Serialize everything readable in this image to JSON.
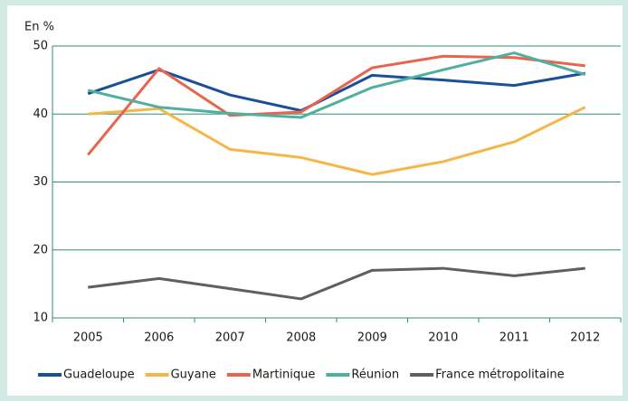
{
  "chart_data": {
    "type": "line",
    "y_label": "En %",
    "categories": [
      "2005",
      "2006",
      "2007",
      "2008",
      "2009",
      "2010",
      "2011",
      "2012"
    ],
    "series": [
      {
        "name": "Guadeloupe",
        "color": "#1b4f98",
        "values": [
          43,
          46.5,
          42.8,
          40.5,
          45.7,
          45,
          44.2,
          46
        ]
      },
      {
        "name": "Guyane",
        "color": "#f7b548",
        "values": [
          40,
          40.8,
          34.8,
          33.6,
          31.1,
          33,
          35.9,
          41
        ]
      },
      {
        "name": "Martinique",
        "color": "#e8644f",
        "values": [
          34,
          46.7,
          39.8,
          40.3,
          46.8,
          48.5,
          48.3,
          47.1
        ]
      },
      {
        "name": "Réunion",
        "color": "#4fb0a0",
        "values": [
          43.5,
          41,
          40.1,
          39.5,
          43.9,
          46.5,
          49,
          45.8
        ]
      },
      {
        "name": "France métropolitaine",
        "color": "#5f5f5f",
        "values": [
          14.5,
          15.8,
          14.3,
          12.8,
          17,
          17.3,
          16.2,
          17.3
        ]
      }
    ],
    "ylim": [
      10,
      50
    ],
    "yticks": [
      10,
      20,
      30,
      40,
      50
    ],
    "grid": true,
    "legend": "bottom"
  }
}
